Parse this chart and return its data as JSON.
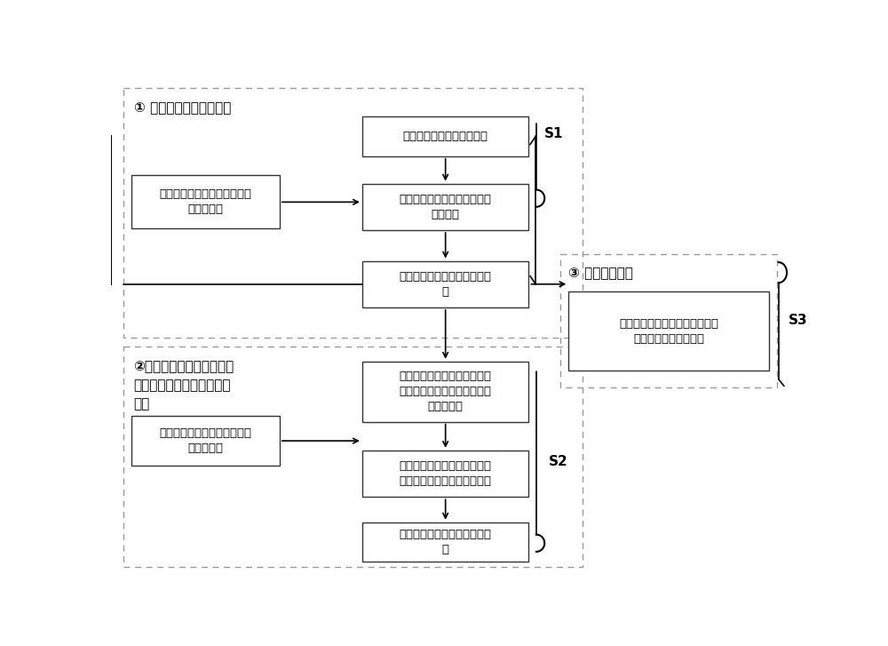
{
  "bg_color": "#ffffff",
  "section1_title": "① 建立电池平衡电位方程",
  "section2_title": "②建立基于不同衰减机理的\n衰减模型，分别预测其衰减\n趋势",
  "section3_title": "③ 剩余容量预测",
  "box1_text": "锂离子电池电化学基础模型",
  "box2_text": "采集待测锂离子电池的正负极\n的平衡电位",
  "box3_text": "待测锂离子电池正负极的平衡\n电位方程",
  "box4_text": "待测锂离子全电池平衡电位方\n程",
  "box5_text": "锂离子电池衰减试验，提取模\n型衰减参数",
  "box6_text": "根据锂离子电池衰减机理，建\n立基于不同衰减机理的容量衰\n减原理模型",
  "box7_text": "确定待测锂离子电池基于不同\n衰减机理的容量衰减模型参数",
  "box8_text": "预测不同衰减模式下的衰减趋\n势",
  "box9_text": "根据不同衰减模式的衰减趋势，\n求解电池的剩余容量值",
  "s1_label": "S1",
  "s2_label": "S2",
  "s3_label": "S3",
  "font_size_title": 11,
  "font_size_box": 9.5,
  "font_size_label": 11
}
